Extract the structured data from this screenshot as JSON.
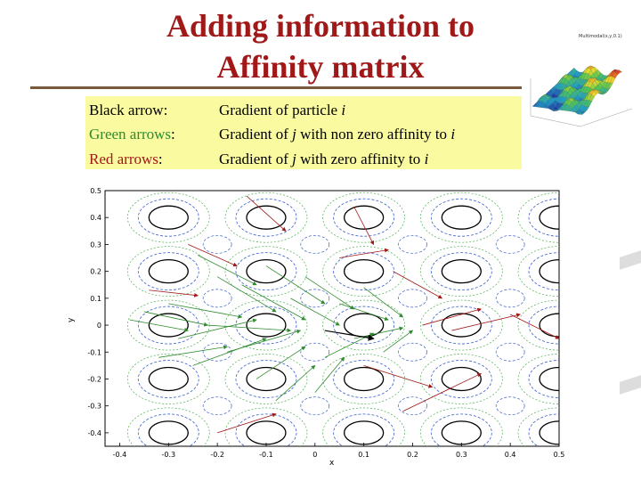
{
  "slide": {
    "title_line1": "Adding information to",
    "title_line2": "Affinity matrix"
  },
  "legend": [
    {
      "key_prefix": "Black arrow",
      "key_suffix": ":",
      "desc_text": "Gradient of particle",
      "desc_var": "i",
      "desc_rest": ""
    },
    {
      "key_prefix": "Green arrows",
      "key_suffix": ":",
      "desc_text": "Gradient of",
      "desc_var": "j",
      "desc_rest": " with non zero affinity to",
      "desc_var2": "i"
    },
    {
      "key_prefix": "Red arrows",
      "key_suffix": ":",
      "desc_text": "Gradient of",
      "desc_var": "j",
      "desc_rest": " with  zero affinity to",
      "desc_var2": "i"
    }
  ],
  "thumbnail": {
    "caption": "Multimodal(x,y,0.1)"
  },
  "plot": {
    "ylabel": "y",
    "xlabel": "x",
    "xticks": [
      "-0.4",
      "-0.3",
      "-0.2",
      "-0.1",
      "0",
      "0.1",
      "0.2",
      "0.3",
      "0.4",
      "0.5"
    ],
    "yticks": [
      "0.5",
      "0.4",
      "0.3",
      "0.2",
      "0.1",
      "0",
      "-0.1",
      "-0.2",
      "-0.3",
      "-0.4"
    ]
  },
  "colors": {
    "title": "#a01818",
    "legend_bg": "#fafaa0",
    "green": "#2e8b2e",
    "red": "#a01818",
    "black_contour": "#000000",
    "blue_contour": "#3a5fcd",
    "green_contour": "#4caf50"
  }
}
